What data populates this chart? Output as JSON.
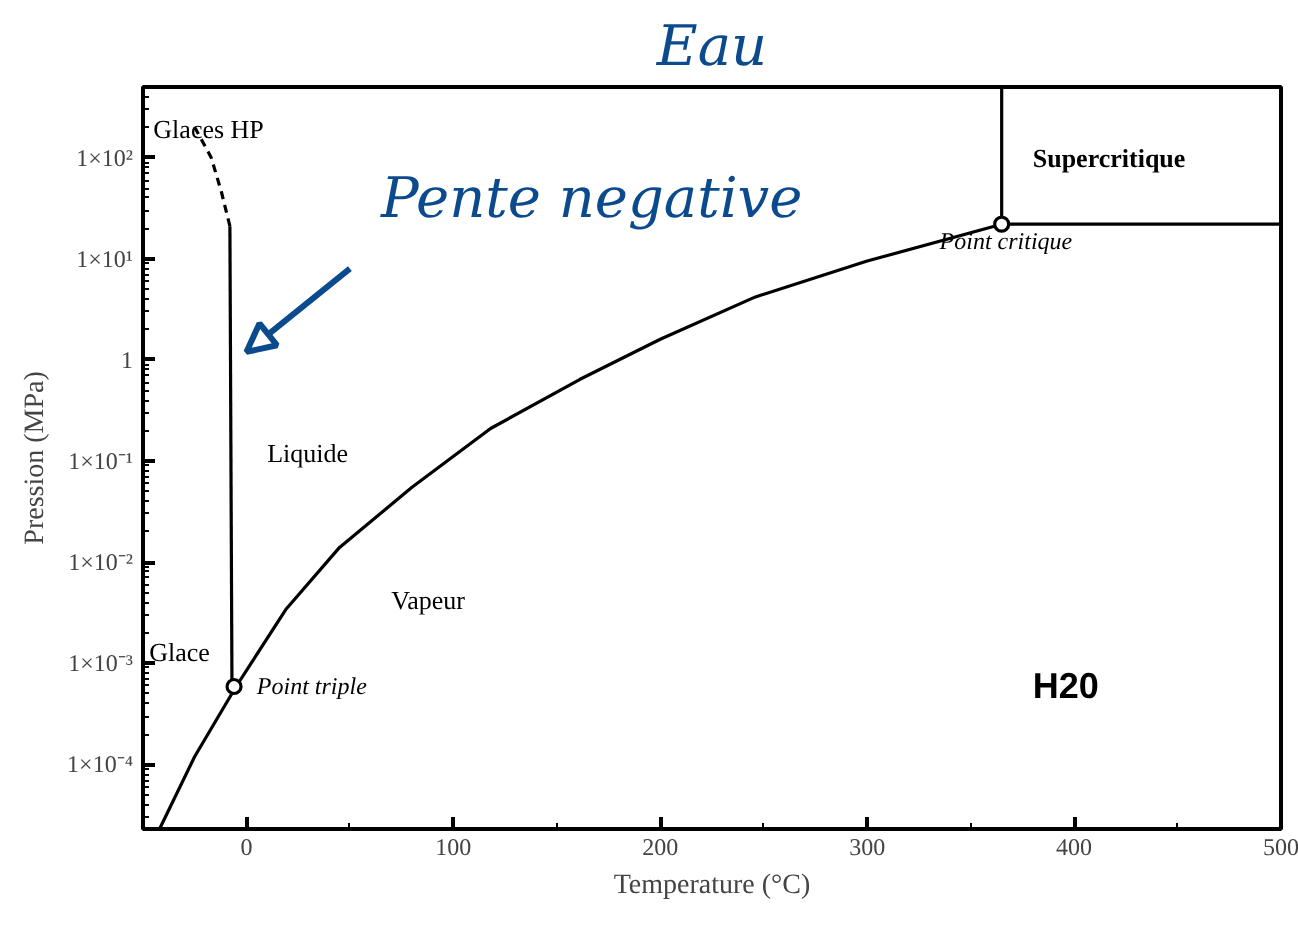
{
  "chart_data": {
    "type": "line",
    "xlabel": "Temperature (°C)",
    "ylabel": "Pression (MPa)",
    "log": "y",
    "xlim": [
      -50,
      500
    ],
    "xticks": [
      0,
      100,
      200,
      300,
      400,
      500
    ],
    "ylim": [
      2.3e-05,
      500
    ],
    "yticks": [
      {
        "value": 0.0001,
        "label": "1×10⁻⁴"
      },
      {
        "value": 0.001,
        "label": "1×10⁻³"
      },
      {
        "value": 0.01,
        "label": "1×10⁻²"
      },
      {
        "value": 0.1,
        "label": "1×10⁻¹"
      },
      {
        "value": 1,
        "label": "1"
      },
      {
        "value": 10,
        "label": "1×10¹"
      },
      {
        "value": 100,
        "label": "1×10²"
      }
    ],
    "grid": false,
    "series": [
      {
        "color": "#000000",
        "line_style": "solid",
        "x": [
          -42,
          -25,
          -5,
          19,
          45,
          80,
          118,
          161,
          200,
          246,
          300,
          365
        ],
        "values": [
          2.3e-05,
          0.00012,
          0.00059,
          0.0034,
          0.014,
          0.055,
          0.21,
          0.64,
          1.6,
          4.2,
          9.5,
          22
        ]
      },
      {
        "color": "#000000",
        "line_style": "solid",
        "x": [
          -7,
          -8
        ],
        "values": [
          0.00059,
          21
        ]
      },
      {
        "color": "#000000",
        "line_style": "dashed",
        "x": [
          -8,
          -12,
          -17,
          -25
        ],
        "values": [
          21,
          45,
          100,
          200
        ]
      },
      {
        "color": "#000000",
        "line_style": "solid",
        "x": [
          365,
          365
        ],
        "values": [
          22,
          500
        ]
      },
      {
        "color": "#000000",
        "line_style": "solid",
        "x": [
          365,
          500
        ],
        "values": [
          22,
          22
        ]
      },
      {
        "type": "scatter",
        "color": "#000000",
        "marker": "circle",
        "x": [
          -6,
          365
        ],
        "values": [
          0.00059,
          22
        ]
      }
    ],
    "annotations": [
      "Glaces HP",
      "Liquide",
      "Glace",
      "Vapeur",
      "Point triple",
      "Point critique",
      "Supercritique",
      "H20",
      "Eau",
      "Pente negative"
    ]
  }
}
